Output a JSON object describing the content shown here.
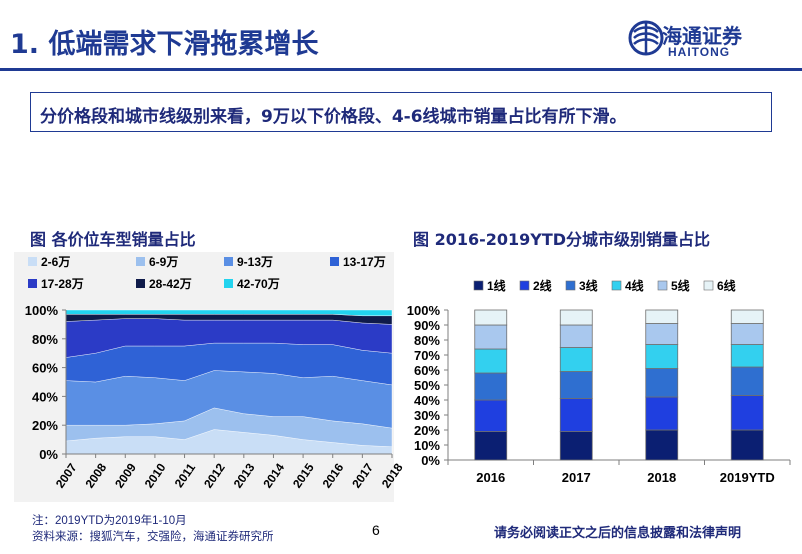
{
  "header": {
    "title": "1. 低端需求下滑拖累增长"
  },
  "logo": {
    "name_cn": "海通证券",
    "name_en": "HAITONG"
  },
  "summary": {
    "text": "分价格段和城市线级别来看，9万以下价格段、4-6线城市销量占比有所下滑。"
  },
  "chart_data": [
    {
      "type": "area",
      "stacked": true,
      "title": "图 各价位车型销量占比",
      "x": [
        "2007",
        "2008",
        "2009",
        "2010",
        "2011",
        "2012",
        "2013",
        "2014",
        "2015",
        "2016",
        "2017",
        "2018"
      ],
      "ylim": [
        0,
        100
      ],
      "yticks": [
        "0%",
        "20%",
        "40%",
        "60%",
        "80%",
        "100%"
      ],
      "legend_position": "top",
      "grid": false,
      "series": [
        {
          "name": "2-6万",
          "color": "#c9def6",
          "values": [
            9,
            11,
            12,
            12,
            10,
            17,
            15,
            13,
            10,
            8,
            6,
            5
          ]
        },
        {
          "name": "6-9万",
          "color": "#9cc0ee",
          "values": [
            11,
            9,
            8,
            9,
            13,
            15,
            13,
            13,
            16,
            15,
            15,
            13
          ]
        },
        {
          "name": "9-13万",
          "color": "#5a8fe4",
          "values": [
            31,
            30,
            34,
            32,
            28,
            26,
            29,
            30,
            27,
            31,
            30,
            30
          ]
        },
        {
          "name": "13-17万",
          "color": "#2f62d6",
          "values": [
            16,
            20,
            21,
            22,
            24,
            19,
            20,
            21,
            23,
            22,
            21,
            22
          ]
        },
        {
          "name": "17-28万",
          "color": "#2b3bc6",
          "values": [
            25,
            23,
            19,
            19,
            18,
            16,
            16,
            16,
            17,
            17,
            19,
            20
          ]
        },
        {
          "name": "28-42万",
          "color": "#0f1b4a",
          "values": [
            5,
            4,
            3,
            3,
            4,
            4,
            4,
            4,
            4,
            4,
            5,
            6
          ]
        },
        {
          "name": "42-70万",
          "color": "#22d3ee",
          "values": [
            3,
            3,
            3,
            3,
            3,
            3,
            3,
            3,
            3,
            3,
            4,
            4
          ]
        }
      ]
    },
    {
      "type": "bar",
      "stacked": true,
      "title": "图 2016-2019YTD分城市级别销量占比",
      "categories": [
        "2016",
        "2017",
        "2018",
        "2019YTD"
      ],
      "ylim": [
        0,
        100
      ],
      "yticks": [
        "0%",
        "10%",
        "20%",
        "30%",
        "40%",
        "50%",
        "60%",
        "70%",
        "80%",
        "90%",
        "100%"
      ],
      "legend_position": "top",
      "grid": false,
      "series": [
        {
          "name": "1线",
          "color": "#0b1f72",
          "values": [
            19,
            19,
            20,
            20
          ]
        },
        {
          "name": "2线",
          "color": "#1f3fe0",
          "values": [
            21,
            22,
            22,
            23
          ]
        },
        {
          "name": "3线",
          "color": "#2f6fd0",
          "values": [
            18,
            18,
            19,
            19
          ]
        },
        {
          "name": "4线",
          "color": "#33d0ef",
          "values": [
            16,
            16,
            16,
            15
          ]
        },
        {
          "name": "5线",
          "color": "#a9c8ee",
          "values": [
            16,
            15,
            14,
            14
          ]
        },
        {
          "name": "6线",
          "color": "#e6f3f7",
          "values": [
            10,
            10,
            9,
            9
          ]
        }
      ]
    }
  ],
  "footer": {
    "note": "注：2019YTD为2019年1-10月",
    "source": "资料来源：搜狐汽车，交强险，海通证券研究所",
    "page_number": "6",
    "disclaimer": "请务必阅读正文之后的信息披露和法律声明"
  }
}
